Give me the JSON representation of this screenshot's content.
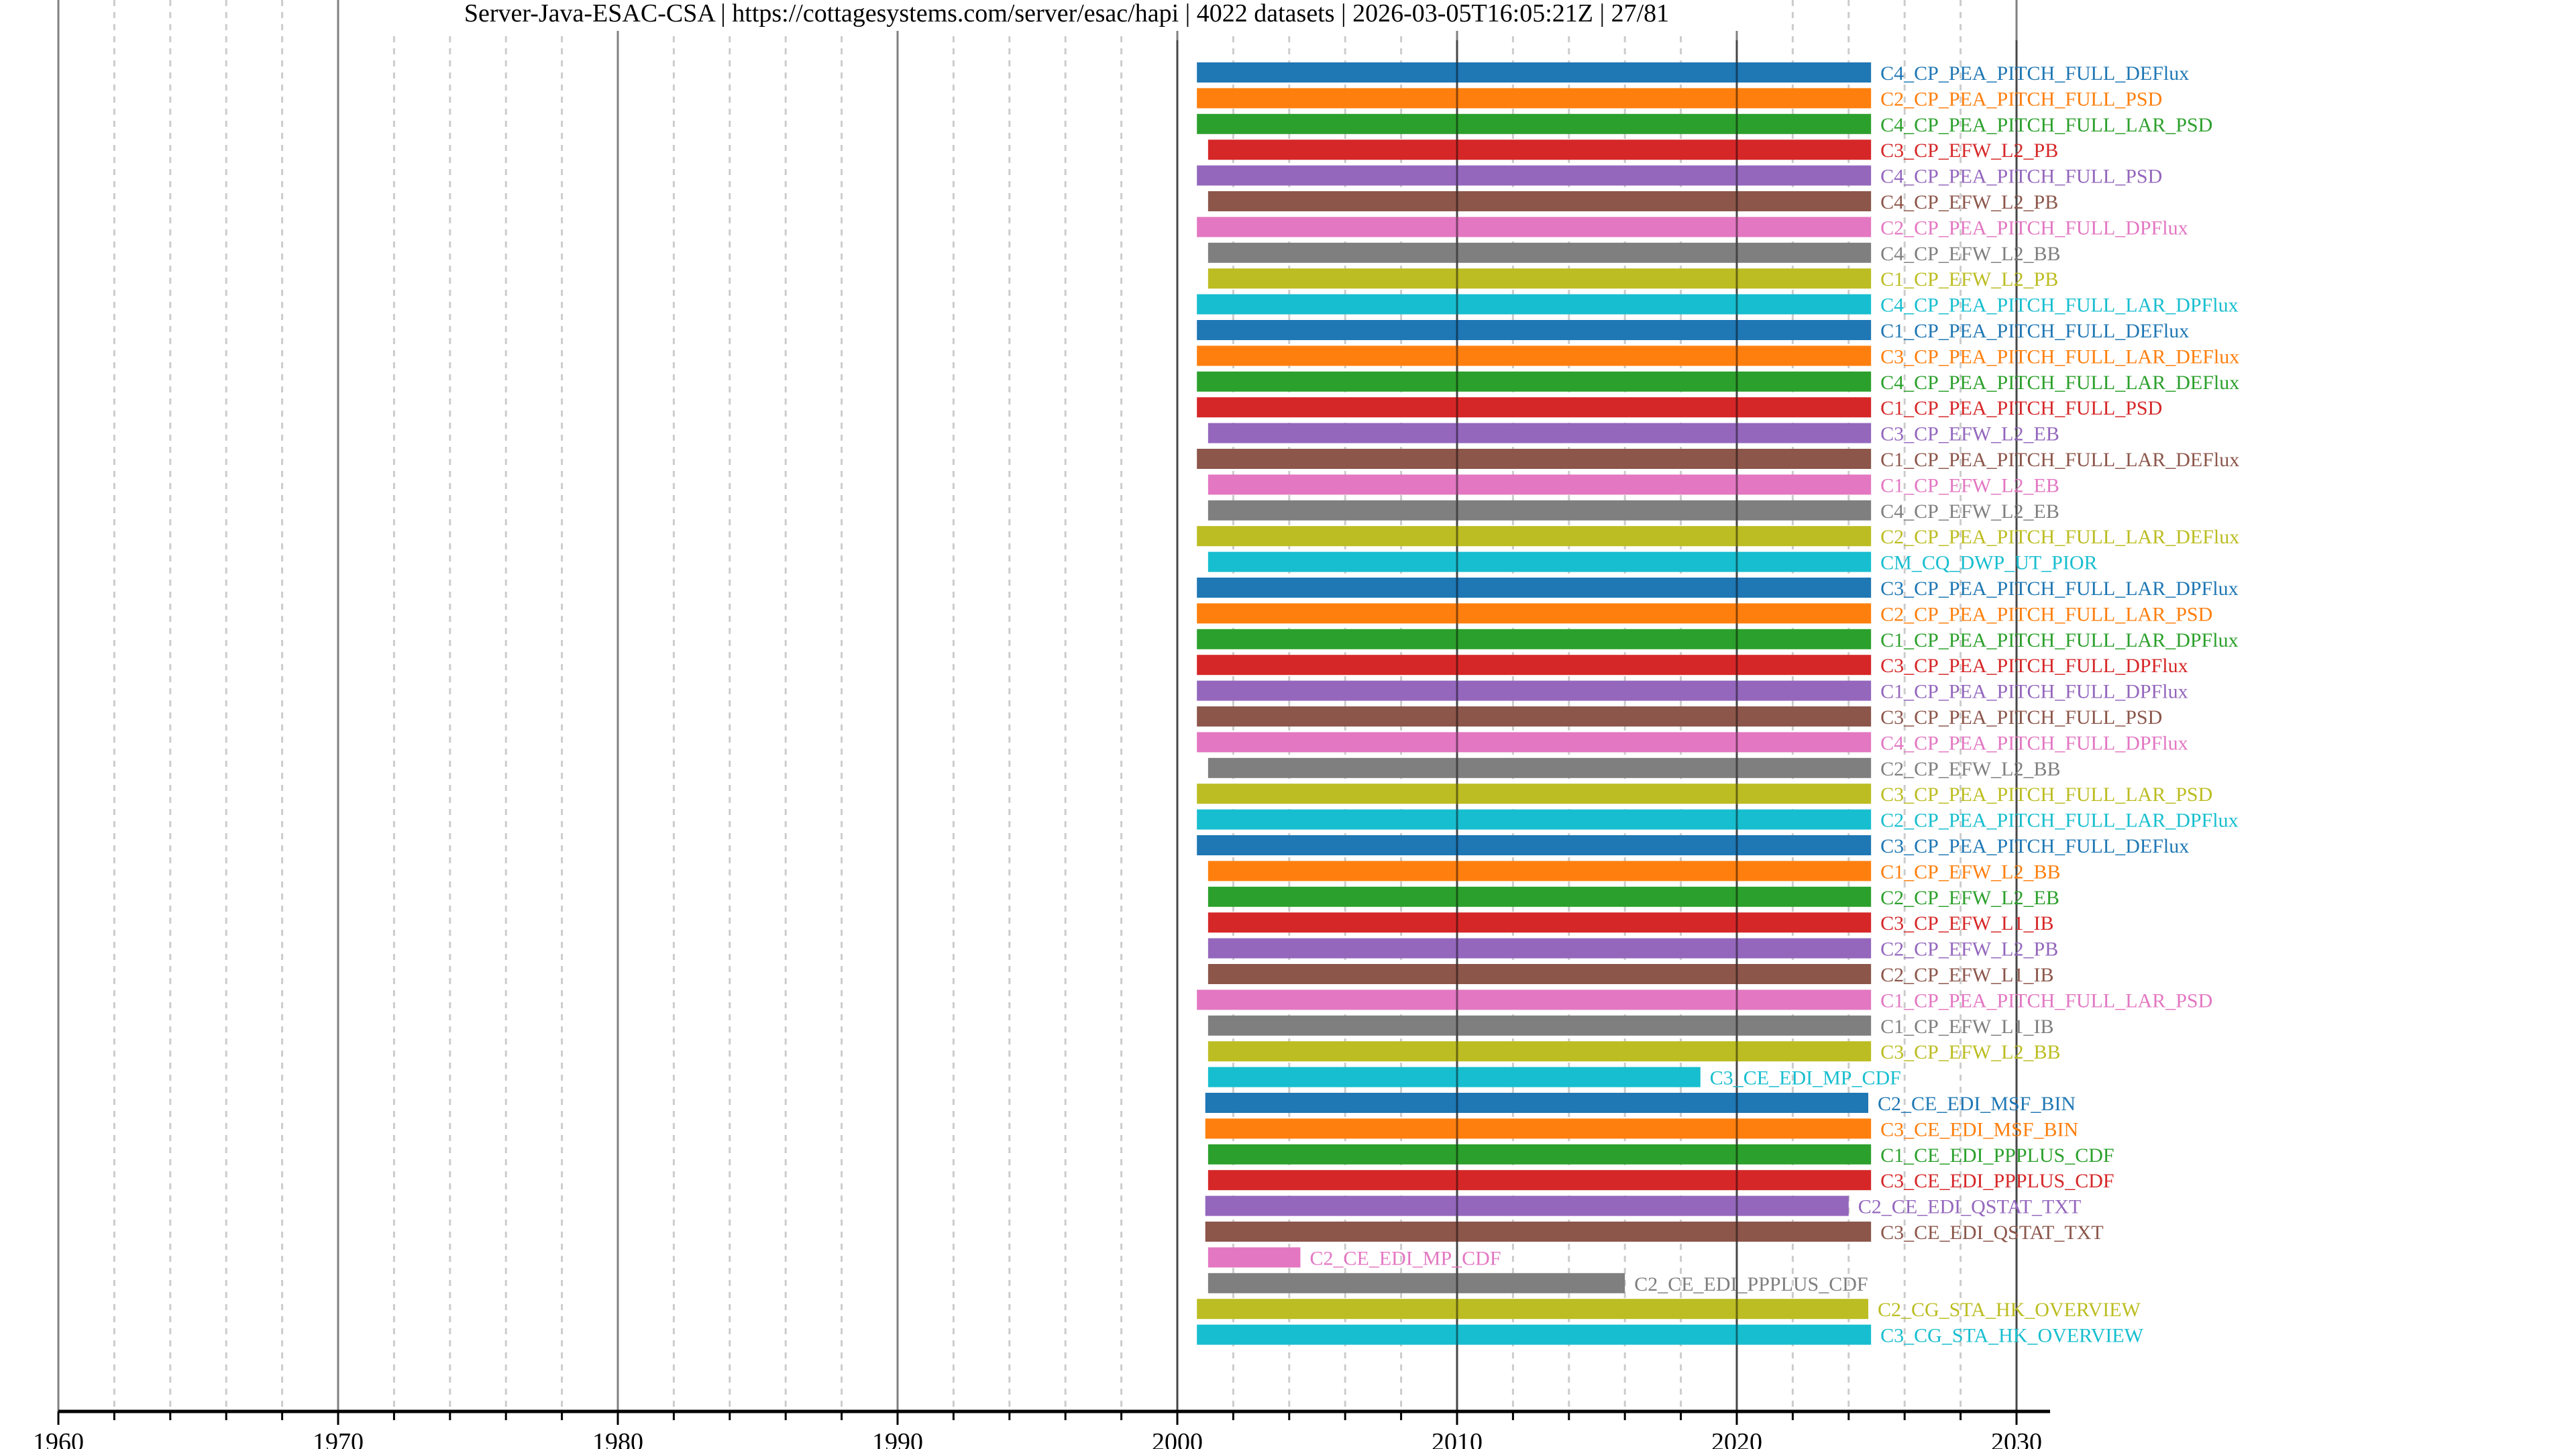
{
  "chart_data": {
    "type": "bar",
    "orientation": "horizontal-timeline",
    "title": "Server-Java-ESAC-CSA | https://cottagesystems.com/server/esac/hapi | 4022 datasets | 2026-03-05T16:05:21Z | 27/81",
    "xlabel": "",
    "ylabel": "",
    "xlim": [
      1960,
      2031.2
    ],
    "x_ticks": [
      1960,
      1970,
      1980,
      1990,
      2000,
      2010,
      2020,
      2030
    ],
    "minor_tick_step": 2,
    "grid": true,
    "colors": [
      "#1f77b4",
      "#ff7f0e",
      "#2ca02c",
      "#d62728",
      "#9467bd",
      "#8c564b",
      "#e377c2",
      "#7f7f7f",
      "#bcbd22",
      "#17becf"
    ],
    "series": [
      {
        "name": "C4_CP_PEA_PITCH_FULL_DEFlux",
        "start": 2000.7,
        "end": 2024.8
      },
      {
        "name": "C2_CP_PEA_PITCH_FULL_PSD",
        "start": 2000.7,
        "end": 2024.8
      },
      {
        "name": "C4_CP_PEA_PITCH_FULL_LAR_PSD",
        "start": 2000.7,
        "end": 2024.8
      },
      {
        "name": "C3_CP_EFW_L2_PB",
        "start": 2001.1,
        "end": 2024.8
      },
      {
        "name": "C4_CP_PEA_PITCH_FULL_PSD",
        "start": 2000.7,
        "end": 2024.8
      },
      {
        "name": "C4_CP_EFW_L2_PB",
        "start": 2001.1,
        "end": 2024.8
      },
      {
        "name": "C2_CP_PEA_PITCH_FULL_DPFlux",
        "start": 2000.7,
        "end": 2024.8
      },
      {
        "name": "C4_CP_EFW_L2_BB",
        "start": 2001.1,
        "end": 2024.8
      },
      {
        "name": "C1_CP_EFW_L2_PB",
        "start": 2001.1,
        "end": 2024.8
      },
      {
        "name": "C4_CP_PEA_PITCH_FULL_LAR_DPFlux",
        "start": 2000.7,
        "end": 2024.8
      },
      {
        "name": "C1_CP_PEA_PITCH_FULL_DEFlux",
        "start": 2000.7,
        "end": 2024.8
      },
      {
        "name": "C3_CP_PEA_PITCH_FULL_LAR_DEFlux",
        "start": 2000.7,
        "end": 2024.8
      },
      {
        "name": "C4_CP_PEA_PITCH_FULL_LAR_DEFlux",
        "start": 2000.7,
        "end": 2024.8
      },
      {
        "name": "C1_CP_PEA_PITCH_FULL_PSD",
        "start": 2000.7,
        "end": 2024.8
      },
      {
        "name": "C3_CP_EFW_L2_EB",
        "start": 2001.1,
        "end": 2024.8
      },
      {
        "name": "C1_CP_PEA_PITCH_FULL_LAR_DEFlux",
        "start": 2000.7,
        "end": 2024.8
      },
      {
        "name": "C1_CP_EFW_L2_EB",
        "start": 2001.1,
        "end": 2024.8
      },
      {
        "name": "C4_CP_EFW_L2_EB",
        "start": 2001.1,
        "end": 2024.8
      },
      {
        "name": "C2_CP_PEA_PITCH_FULL_LAR_DEFlux",
        "start": 2000.7,
        "end": 2024.8
      },
      {
        "name": "CM_CQ_DWP_UT_PIOR",
        "start": 2001.1,
        "end": 2024.8
      },
      {
        "name": "C3_CP_PEA_PITCH_FULL_LAR_DPFlux",
        "start": 2000.7,
        "end": 2024.8
      },
      {
        "name": "C2_CP_PEA_PITCH_FULL_LAR_PSD",
        "start": 2000.7,
        "end": 2024.8
      },
      {
        "name": "C1_CP_PEA_PITCH_FULL_LAR_DPFlux",
        "start": 2000.7,
        "end": 2024.8
      },
      {
        "name": "C3_CP_PEA_PITCH_FULL_DPFlux",
        "start": 2000.7,
        "end": 2024.8
      },
      {
        "name": "C1_CP_PEA_PITCH_FULL_DPFlux",
        "start": 2000.7,
        "end": 2024.8
      },
      {
        "name": "C3_CP_PEA_PITCH_FULL_PSD",
        "start": 2000.7,
        "end": 2024.8
      },
      {
        "name": "C4_CP_PEA_PITCH_FULL_DPFlux",
        "start": 2000.7,
        "end": 2024.8
      },
      {
        "name": "C2_CP_EFW_L2_BB",
        "start": 2001.1,
        "end": 2024.8
      },
      {
        "name": "C3_CP_PEA_PITCH_FULL_LAR_PSD",
        "start": 2000.7,
        "end": 2024.8
      },
      {
        "name": "C2_CP_PEA_PITCH_FULL_LAR_DPFlux",
        "start": 2000.7,
        "end": 2024.8
      },
      {
        "name": "C3_CP_PEA_PITCH_FULL_DEFlux",
        "start": 2000.7,
        "end": 2024.8
      },
      {
        "name": "C1_CP_EFW_L2_BB",
        "start": 2001.1,
        "end": 2024.8
      },
      {
        "name": "C2_CP_EFW_L2_EB",
        "start": 2001.1,
        "end": 2024.8
      },
      {
        "name": "C3_CP_EFW_L1_IB",
        "start": 2001.1,
        "end": 2024.8
      },
      {
        "name": "C2_CP_EFW_L2_PB",
        "start": 2001.1,
        "end": 2024.8
      },
      {
        "name": "C2_CP_EFW_L1_IB",
        "start": 2001.1,
        "end": 2024.8
      },
      {
        "name": "C1_CP_PEA_PITCH_FULL_LAR_PSD",
        "start": 2000.7,
        "end": 2024.8
      },
      {
        "name": "C1_CP_EFW_L1_IB",
        "start": 2001.1,
        "end": 2024.8
      },
      {
        "name": "C3_CP_EFW_L2_BB",
        "start": 2001.1,
        "end": 2024.8
      },
      {
        "name": "C3_CE_EDI_MP_CDF",
        "start": 2001.1,
        "end": 2018.7
      },
      {
        "name": "C2_CE_EDI_MSF_BIN",
        "start": 2001.0,
        "end": 2024.7
      },
      {
        "name": "C3_CE_EDI_MSF_BIN",
        "start": 2001.0,
        "end": 2024.8
      },
      {
        "name": "C1_CE_EDI_PPPLUS_CDF",
        "start": 2001.1,
        "end": 2024.8
      },
      {
        "name": "C3_CE_EDI_PPPLUS_CDF",
        "start": 2001.1,
        "end": 2024.8
      },
      {
        "name": "C2_CE_EDI_QSTAT_TXT",
        "start": 2001.0,
        "end": 2024.0
      },
      {
        "name": "C3_CE_EDI_QSTAT_TXT",
        "start": 2001.0,
        "end": 2024.8
      },
      {
        "name": "C2_CE_EDI_MP_CDF",
        "start": 2001.1,
        "end": 2004.4
      },
      {
        "name": "C2_CE_EDI_PPPLUS_CDF",
        "start": 2001.1,
        "end": 2016.0
      },
      {
        "name": "C2_CG_STA_HK_OVERVIEW",
        "start": 2000.7,
        "end": 2024.7
      },
      {
        "name": "C3_CG_STA_HK_OVERVIEW",
        "start": 2000.7,
        "end": 2024.8
      }
    ]
  }
}
